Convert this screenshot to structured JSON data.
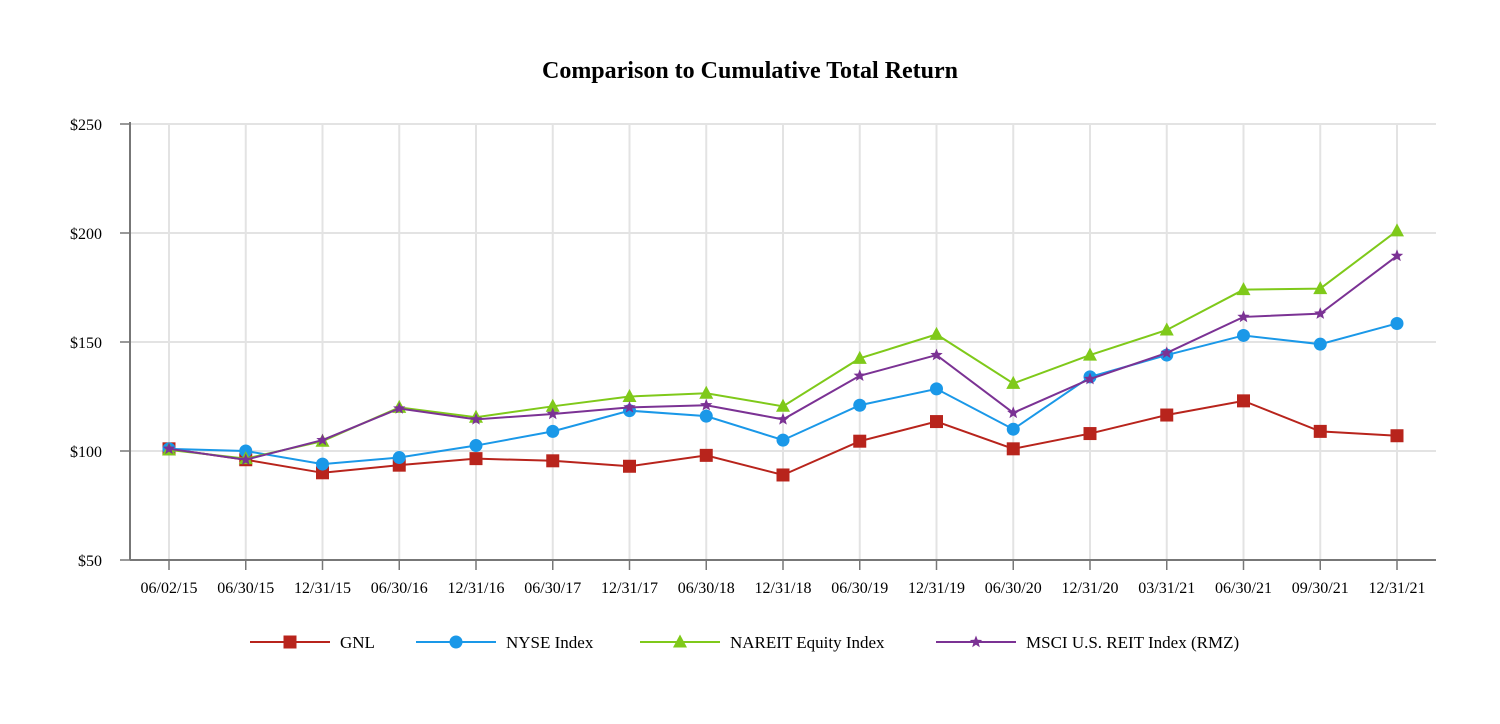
{
  "chart_data": {
    "type": "line",
    "title": "Comparison to Cumulative Total Return",
    "xlabel": "",
    "ylabel": "",
    "categories": [
      "06/02/15",
      "06/30/15",
      "12/31/15",
      "06/30/16",
      "12/31/16",
      "06/30/17",
      "12/31/17",
      "06/30/18",
      "12/31/18",
      "06/30/19",
      "12/31/19",
      "06/30/20",
      "12/31/20",
      "03/31/21",
      "06/30/21",
      "09/30/21",
      "12/31/21"
    ],
    "ylim": [
      50,
      250
    ],
    "yticks": [
      50,
      100,
      150,
      200,
      250
    ],
    "ytick_labels": [
      "$50",
      "$100",
      "$150",
      "$200",
      "$250"
    ],
    "grid": true,
    "legend_position": "bottom",
    "series": [
      {
        "name": "GNL",
        "color": "#b8241c",
        "marker": "square",
        "values": [
          101,
          96,
          90,
          93.5,
          96.5,
          95.5,
          93,
          98,
          89,
          104.5,
          113.5,
          101,
          108,
          116.5,
          123,
          109,
          107
        ]
      },
      {
        "name": "NYSE Index",
        "color": "#1a98e8",
        "marker": "circle",
        "values": [
          101,
          100,
          94,
          97,
          102.5,
          109,
          118.5,
          116,
          105,
          121,
          128.5,
          110,
          134,
          144,
          153,
          149,
          158.5
        ]
      },
      {
        "name": "NAREIT Equity Index",
        "color": "#7fc91a",
        "marker": "triangle",
        "values": [
          100.5,
          96.5,
          104.5,
          120,
          115.5,
          120.5,
          125,
          126.5,
          120.5,
          142.5,
          153.5,
          131,
          144,
          155.5,
          174,
          174.5,
          201
        ]
      },
      {
        "name": "MSCI U.S. REIT Index (RMZ)",
        "color": "#7b3294",
        "marker": "star",
        "values": [
          101,
          96,
          105,
          119.5,
          114.5,
          117,
          120,
          121,
          114.5,
          134.5,
          144,
          117.5,
          133,
          145,
          161.5,
          163,
          189.5
        ]
      }
    ]
  }
}
